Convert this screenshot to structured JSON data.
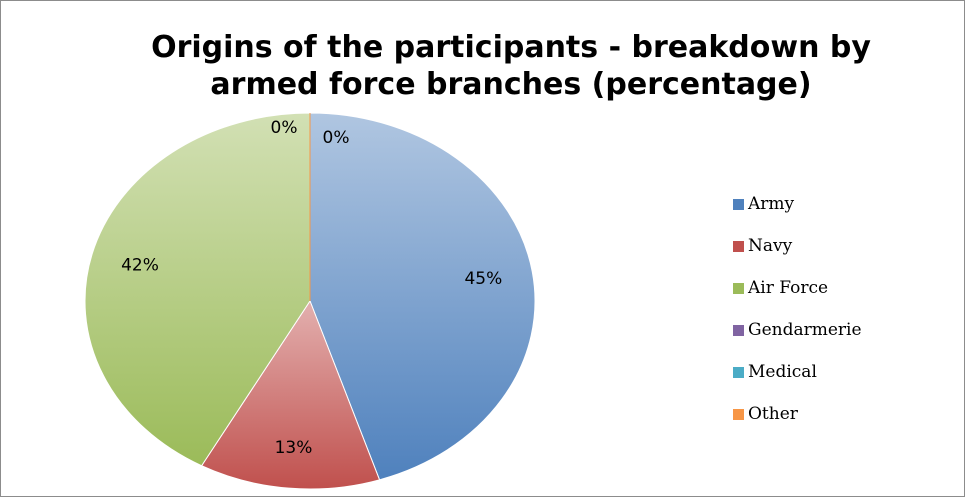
{
  "chart_data": {
    "type": "pie",
    "title_lines": [
      "Origins of the participants - breakdown by",
      "armed force branches (percentage)"
    ],
    "categories": [
      "Army",
      "Navy",
      "Air Force",
      "Gendarmerie",
      "Medical",
      "Other"
    ],
    "values": [
      45,
      13,
      42,
      0,
      0,
      0
    ],
    "data_labels": [
      "45%",
      "13%",
      "42%",
      "",
      "0%",
      "0%"
    ],
    "colors": [
      "#4f81bd",
      "#c0504d",
      "#9bbb59",
      "#8064a2",
      "#4bacc6",
      "#f79646"
    ],
    "legend_position": "right"
  }
}
